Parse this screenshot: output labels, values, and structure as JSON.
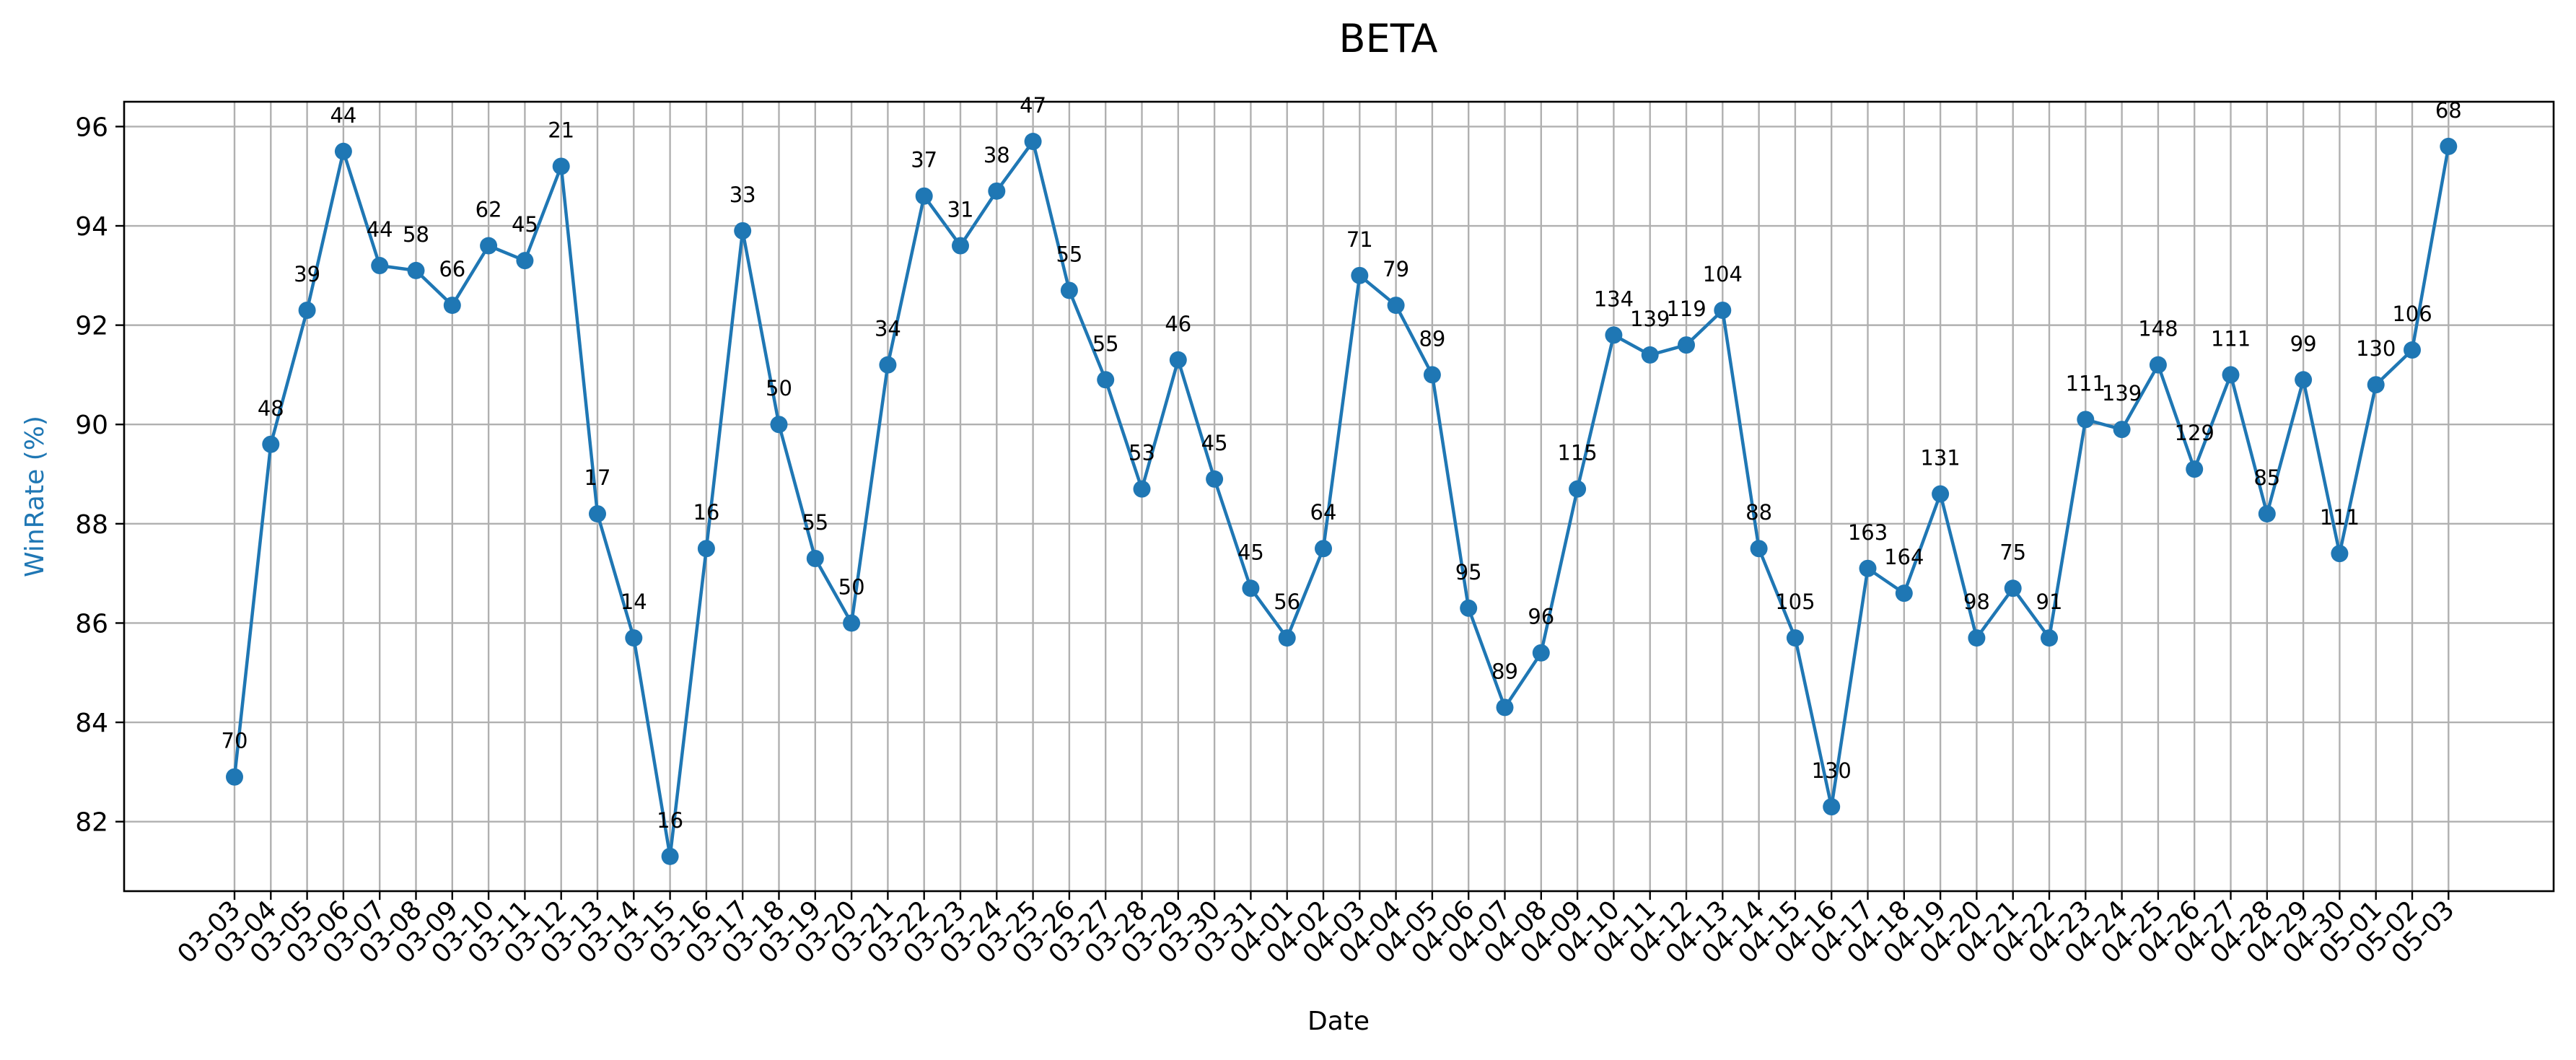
{
  "colors": {
    "series": "#1f77b4",
    "ylabel": "#1f77b4"
  },
  "chart_data": {
    "type": "line",
    "title": "BETA",
    "xlabel": "Date",
    "ylabel": "WinRate (%)",
    "ylim": [
      80.6,
      96.5
    ],
    "yticks": [
      82,
      84,
      86,
      88,
      90,
      92,
      94,
      96
    ],
    "grid": true,
    "legend": "none",
    "x": [
      "03-03",
      "03-04",
      "03-05",
      "03-06",
      "03-07",
      "03-08",
      "03-09",
      "03-10",
      "03-11",
      "03-12",
      "03-13",
      "03-14",
      "03-15",
      "03-16",
      "03-17",
      "03-18",
      "03-19",
      "03-20",
      "03-21",
      "03-22",
      "03-23",
      "03-24",
      "03-25",
      "03-26",
      "03-27",
      "03-28",
      "03-29",
      "03-30",
      "03-31",
      "04-01",
      "04-02",
      "04-03",
      "04-04",
      "04-05",
      "04-06",
      "04-07",
      "04-08",
      "04-09",
      "04-10",
      "04-11",
      "04-12",
      "04-13",
      "04-14",
      "04-15",
      "04-16",
      "04-17",
      "04-18",
      "04-19",
      "04-20",
      "04-21",
      "04-22",
      "04-23",
      "04-24",
      "04-25",
      "04-26",
      "04-27",
      "04-28",
      "04-29",
      "04-30",
      "05-01",
      "05-02",
      "05-03"
    ],
    "series": [
      {
        "values": [
          82.9,
          89.6,
          92.3,
          95.5,
          93.2,
          93.1,
          92.4,
          93.6,
          93.3,
          95.2,
          88.2,
          85.7,
          81.3,
          87.5,
          93.9,
          90.0,
          87.3,
          86.0,
          91.2,
          94.6,
          93.6,
          94.7,
          95.7,
          92.7,
          90.9,
          88.7,
          91.3,
          88.9,
          86.7,
          85.7,
          87.5,
          93.0,
          92.4,
          91.0,
          86.3,
          84.3,
          85.4,
          88.7,
          91.8,
          91.4,
          91.6,
          92.3,
          87.5,
          85.7,
          82.3,
          87.1,
          86.6,
          88.6,
          85.7,
          86.7,
          85.7,
          90.1,
          89.9,
          91.2,
          89.1,
          91.0,
          88.2,
          90.9,
          87.4,
          90.8,
          91.5,
          95.6
        ],
        "labels": [
          "70",
          "48",
          "39",
          "44",
          "44",
          "58",
          "66",
          "62",
          "45",
          "21",
          "17",
          "14",
          "16",
          "16",
          "33",
          "50",
          "55",
          "50",
          "34",
          "37",
          "31",
          "38",
          "47",
          "55",
          "55",
          "53",
          "46",
          "45",
          "45",
          "56",
          "64",
          "71",
          "79",
          "89",
          "95",
          "89",
          "96",
          "115",
          "134",
          "139",
          "119",
          "104",
          "88",
          "105",
          "130",
          "163",
          "164",
          "131",
          "98",
          "75",
          "91",
          "111",
          "139",
          "148",
          "129",
          "111",
          "85",
          "99",
          "111",
          "130",
          "106",
          "68"
        ]
      }
    ]
  }
}
